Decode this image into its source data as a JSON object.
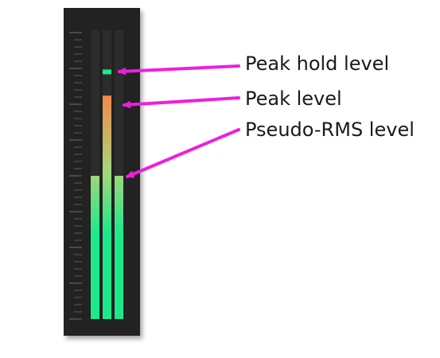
{
  "meter": {
    "panel_color": "#242424",
    "channel_track_color": "#2c2c2c",
    "tick_color": "#5a5a5a",
    "channels": [
      {
        "name": "left-rms",
        "level": 0.5
      },
      {
        "name": "peak",
        "level": 0.78,
        "hold": 0.86
      },
      {
        "name": "right-rms",
        "level": 0.5
      }
    ],
    "gradient": {
      "low": "#1ee88c",
      "mid": "#a6d67a",
      "high": "#f28a4a"
    },
    "hold_color": "#1ee88c"
  },
  "annotations": {
    "arrow_color": "#ee1ee0",
    "peak_hold": "Peak hold level",
    "peak": "Peak level",
    "rms": "Pseudo-RMS level"
  }
}
